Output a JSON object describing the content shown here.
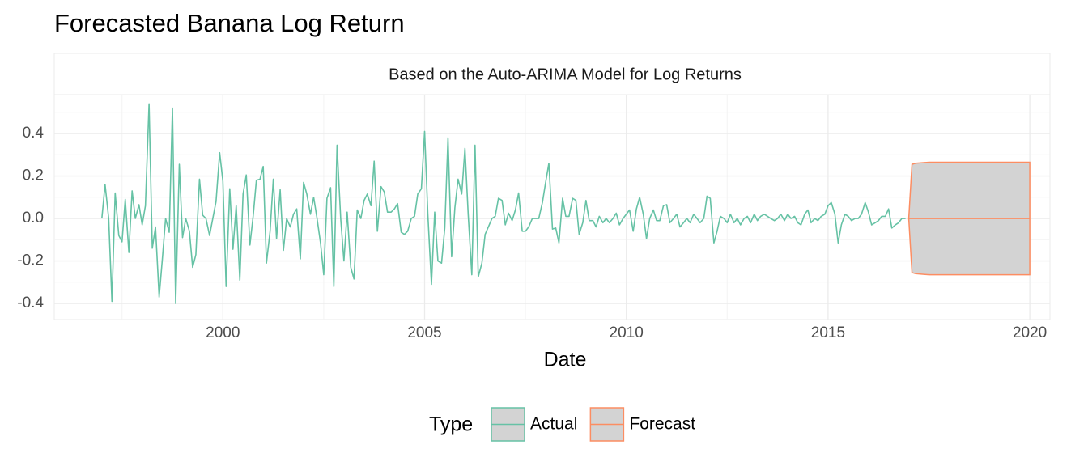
{
  "chart_data": {
    "type": "line",
    "title": "Forecasted Banana Log Return",
    "facet_label": "Based on the Auto-ARIMA Model for Log Returns",
    "x_label": "Date",
    "legend_title": "Type",
    "legend_position": "bottom",
    "grid": true,
    "band_fill": "#d3d3d3",
    "xlim": [
      1995.82,
      2020.5
    ],
    "xticks": [
      2000,
      2005,
      2010,
      2015,
      2020
    ],
    "ylim": [
      -0.476,
      0.583
    ],
    "yticks": [
      -0.4,
      -0.2,
      {
        "value": 0,
        "label": "0.0"
      },
      0.2,
      0.4
    ],
    "series": [
      {
        "name": "Actual",
        "color": "#66c2a5",
        "x": [
          1997,
          1997.08,
          1997.17,
          1997.25,
          1997.33,
          1997.42,
          1997.5,
          1997.58,
          1997.67,
          1997.75,
          1997.83,
          1997.92,
          1998,
          1998.08,
          1998.17,
          1998.25,
          1998.33,
          1998.42,
          1998.5,
          1998.58,
          1998.67,
          1998.75,
          1998.83,
          1998.92,
          1999,
          1999.08,
          1999.17,
          1999.25,
          1999.33,
          1999.42,
          1999.5,
          1999.58,
          1999.67,
          1999.75,
          1999.83,
          1999.92,
          2000,
          2000.08,
          2000.17,
          2000.25,
          2000.33,
          2000.42,
          2000.5,
          2000.58,
          2000.67,
          2000.75,
          2000.83,
          2000.92,
          2001,
          2001.08,
          2001.17,
          2001.25,
          2001.33,
          2001.42,
          2001.5,
          2001.58,
          2001.67,
          2001.75,
          2001.83,
          2001.92,
          2002,
          2002.08,
          2002.17,
          2002.25,
          2002.33,
          2002.42,
          2002.5,
          2002.58,
          2002.67,
          2002.75,
          2002.83,
          2002.92,
          2003,
          2003.08,
          2003.17,
          2003.25,
          2003.33,
          2003.42,
          2003.5,
          2003.58,
          2003.67,
          2003.75,
          2003.83,
          2003.92,
          2004,
          2004.08,
          2004.17,
          2004.25,
          2004.33,
          2004.42,
          2004.5,
          2004.58,
          2004.67,
          2004.75,
          2004.83,
          2004.92,
          2005,
          2005.08,
          2005.17,
          2005.25,
          2005.33,
          2005.42,
          2005.5,
          2005.58,
          2005.67,
          2005.75,
          2005.83,
          2005.92,
          2006,
          2006.08,
          2006.17,
          2006.25,
          2006.33,
          2006.42,
          2006.5,
          2006.58,
          2006.67,
          2006.75,
          2006.83,
          2006.92,
          2007,
          2007.08,
          2007.17,
          2007.25,
          2007.33,
          2007.42,
          2007.5,
          2007.58,
          2007.67,
          2007.75,
          2007.83,
          2007.92,
          2008,
          2008.08,
          2008.17,
          2008.25,
          2008.33,
          2008.42,
          2008.5,
          2008.58,
          2008.67,
          2008.75,
          2008.83,
          2008.92,
          2009,
          2009.08,
          2009.17,
          2009.25,
          2009.33,
          2009.42,
          2009.5,
          2009.58,
          2009.67,
          2009.75,
          2009.83,
          2009.92,
          2010,
          2010.08,
          2010.17,
          2010.25,
          2010.33,
          2010.42,
          2010.5,
          2010.58,
          2010.67,
          2010.75,
          2010.83,
          2010.92,
          2011,
          2011.08,
          2011.17,
          2011.25,
          2011.33,
          2011.42,
          2011.5,
          2011.58,
          2011.67,
          2011.75,
          2011.83,
          2011.92,
          2012,
          2012.08,
          2012.17,
          2012.25,
          2012.33,
          2012.42,
          2012.5,
          2012.58,
          2012.67,
          2012.75,
          2012.83,
          2012.92,
          2013,
          2013.08,
          2013.17,
          2013.25,
          2013.33,
          2013.42,
          2013.5,
          2013.58,
          2013.67,
          2013.75,
          2013.83,
          2013.92,
          2014,
          2014.08,
          2014.17,
          2014.25,
          2014.33,
          2014.42,
          2014.5,
          2014.58,
          2014.67,
          2014.75,
          2014.83,
          2014.92,
          2015,
          2015.08,
          2015.17,
          2015.25,
          2015.33,
          2015.42,
          2015.5,
          2015.58,
          2015.67,
          2015.75,
          2015.83,
          2015.92,
          2016,
          2016.08,
          2016.17,
          2016.25,
          2016.33,
          2016.42,
          2016.5,
          2016.58,
          2016.67,
          2016.75,
          2016.83,
          2016.92
        ],
        "values": [
          0,
          0.16,
          0,
          -0.39,
          0.12,
          -0.08,
          -0.11,
          0.09,
          -0.16,
          0.13,
          0,
          0.065,
          -0.03,
          0.06,
          0.54,
          -0.14,
          -0.04,
          -0.37,
          -0.19,
          0,
          -0.065,
          0.52,
          -0.4,
          0.255,
          -0.09,
          0,
          -0.06,
          -0.23,
          -0.17,
          0.185,
          0.015,
          0,
          -0.08,
          0,
          0.08,
          0.31,
          0.175,
          -0.32,
          0.14,
          -0.145,
          0.06,
          -0.29,
          0.115,
          0.205,
          -0.125,
          0.01,
          0.18,
          0.185,
          0.245,
          -0.21,
          -0.06,
          0.185,
          -0.095,
          0.135,
          -0.15,
          0,
          -0.04,
          0.02,
          0.045,
          -0.19,
          0.17,
          0.115,
          0.02,
          0.1,
          0.005,
          -0.115,
          -0.265,
          0.095,
          0.145,
          -0.32,
          0.345,
          0,
          -0.2,
          0.03,
          -0.23,
          -0.285,
          0.04,
          0,
          0.085,
          0.115,
          0.06,
          0.27,
          -0.06,
          0.15,
          0.125,
          0.03,
          0.03,
          0.045,
          0.07,
          -0.065,
          -0.075,
          -0.06,
          0,
          0.01,
          0.115,
          0.14,
          0.41,
          0.02,
          -0.31,
          0.03,
          -0.2,
          -0.21,
          -0.045,
          0.38,
          -0.18,
          0.05,
          0.185,
          0.115,
          0.33,
          0.02,
          -0.265,
          0.345,
          -0.275,
          -0.21,
          -0.075,
          -0.04,
          0,
          0.01,
          0.095,
          0.085,
          -0.03,
          0.025,
          -0.01,
          0.04,
          0.12,
          -0.06,
          -0.06,
          -0.04,
          0,
          0,
          0,
          0.075,
          0.17,
          0.26,
          -0.05,
          -0.045,
          -0.115,
          0.095,
          0.01,
          0.01,
          0.095,
          0.085,
          -0.075,
          -0.02,
          0.085,
          -0.01,
          -0.01,
          -0.04,
          0.01,
          -0.02,
          0,
          -0.02,
          0,
          0.025,
          -0.03,
          0,
          0.02,
          0.04,
          -0.06,
          0.045,
          0.1,
          0.02,
          -0.095,
          0,
          0.04,
          -0.01,
          -0.01,
          0.06,
          0.065,
          -0.02,
          0,
          0.02,
          -0.04,
          -0.02,
          0,
          -0.02,
          0.02,
          0,
          -0.02,
          0,
          0.105,
          0.095,
          -0.115,
          -0.06,
          0.01,
          0,
          -0.02,
          0.02,
          -0.02,
          0,
          -0.03,
          0,
          0.01,
          -0.02,
          0.02,
          -0.01,
          0.01,
          0.02,
          0.01,
          0,
          -0.01,
          0,
          0.02,
          -0.01,
          0.02,
          0,
          0.01,
          -0.02,
          -0.03,
          0.02,
          0.04,
          -0.02,
          0,
          -0.01,
          0.01,
          0.02,
          0.06,
          0.075,
          0.02,
          -0.115,
          -0.03,
          0.02,
          0.01,
          -0.01,
          0,
          0,
          0.02,
          0.075,
          0.03,
          -0.03,
          -0.02,
          -0.01,
          0.01,
          0.01,
          0.045,
          -0.045,
          -0.03,
          -0.02,
          0,
          0
        ]
      },
      {
        "name": "Forecast",
        "color": "#fc8d62",
        "x": [
          2017,
          2017.08,
          2017.17,
          2017.5,
          2020
        ],
        "values": [
          0,
          0,
          0,
          0,
          0
        ],
        "lower": [
          0,
          -0.255,
          -0.26,
          -0.265,
          -0.265
        ],
        "upper": [
          0,
          0.255,
          0.26,
          0.265,
          0.265
        ]
      }
    ]
  }
}
